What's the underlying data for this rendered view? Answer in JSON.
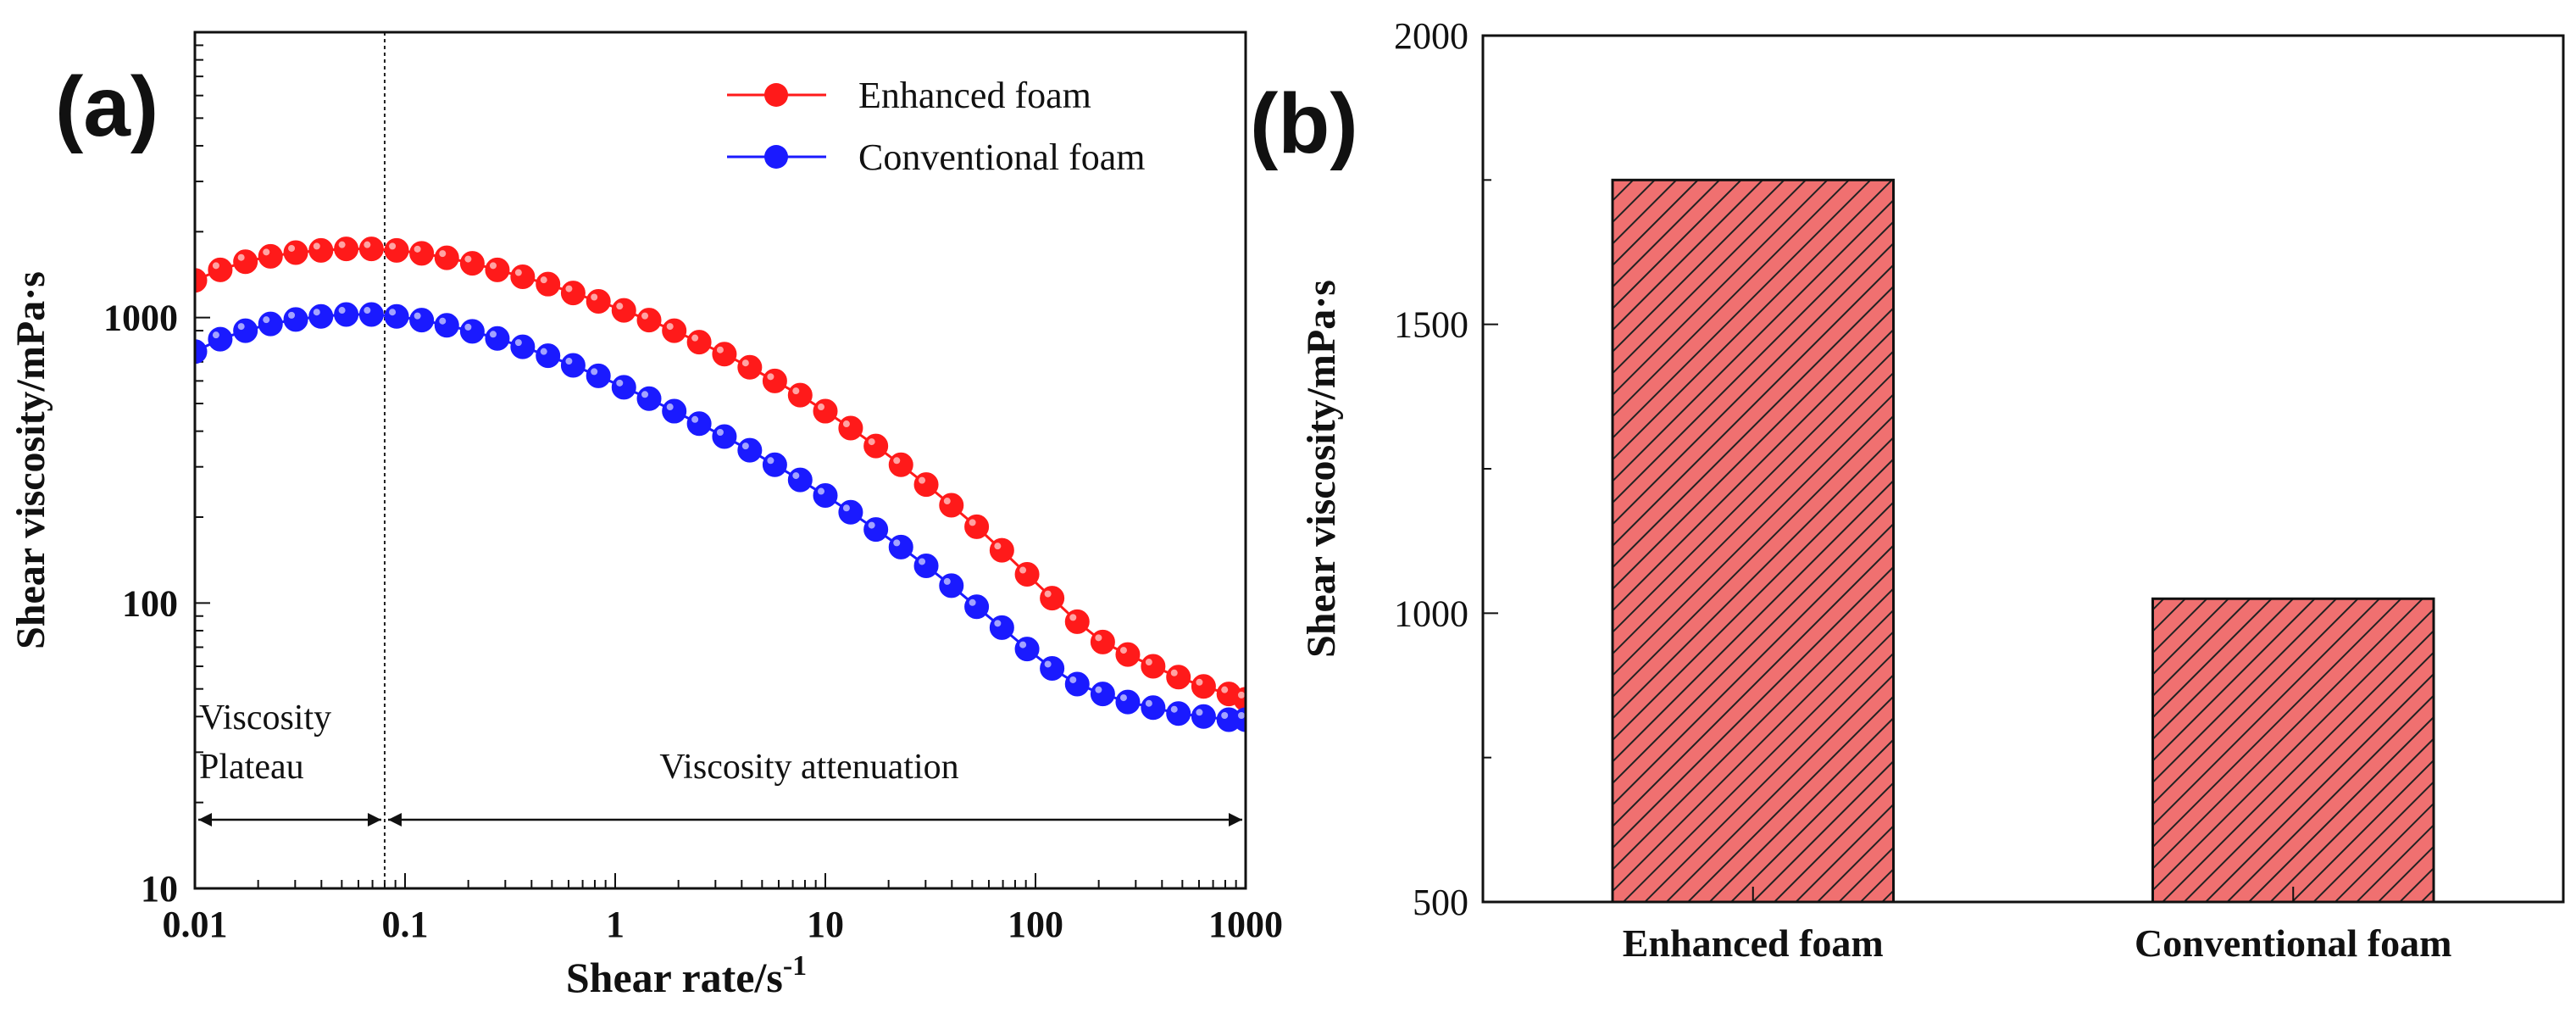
{
  "figure": {
    "panel_a_label": "(a)",
    "panel_b_label": "(b)"
  },
  "chart_data": [
    {
      "type": "scatter",
      "panel": "a",
      "xscale": "log",
      "yscale": "log",
      "xlim": [
        0.01,
        1000
      ],
      "ylim": [
        10,
        10000
      ],
      "xlabel": "Shear rate/s",
      "xlabel_sup": "-1",
      "ylabel": "Shear viscosity/mPa·s",
      "xticks": [
        0.01,
        0.1,
        1,
        10,
        100,
        1000
      ],
      "xtick_labels": [
        "0.01",
        "0.1",
        "1",
        "10",
        "100",
        "1000"
      ],
      "yticks": [
        10,
        100,
        1000
      ],
      "ytick_labels": [
        "10",
        "100",
        "1000"
      ],
      "legend_position": "top-right",
      "divider_x": 0.08,
      "annotations": {
        "plateau": [
          "Viscosity",
          "Plateau"
        ],
        "attenuation": "Viscosity attenuation"
      },
      "series": [
        {
          "name": "Enhanced foam",
          "color": "#ff1a1a",
          "x": [
            0.01,
            0.0132,
            0.0174,
            0.0229,
            0.0302,
            0.0398,
            0.0525,
            0.0692,
            0.0912,
            0.12,
            0.158,
            0.209,
            0.275,
            0.363,
            0.479,
            0.631,
            0.832,
            1.1,
            1.45,
            1.91,
            2.51,
            3.31,
            4.37,
            5.75,
            7.59,
            10,
            13.2,
            17.4,
            22.9,
            30.2,
            39.8,
            52.5,
            69.2,
            91.2,
            120,
            158,
            209,
            275,
            363,
            479,
            631,
            832,
            1000
          ],
          "y": [
            1350,
            1470,
            1570,
            1640,
            1690,
            1720,
            1740,
            1740,
            1720,
            1680,
            1620,
            1550,
            1470,
            1390,
            1310,
            1220,
            1140,
            1060,
            980,
            900,
            820,
            745,
            670,
            600,
            535,
            470,
            410,
            355,
            305,
            260,
            220,
            185,
            153,
            126,
            104,
            86,
            73,
            66,
            60,
            55,
            51,
            48,
            46
          ]
        },
        {
          "name": "Conventional foam",
          "color": "#1a1aff",
          "x": [
            0.01,
            0.0132,
            0.0174,
            0.0229,
            0.0302,
            0.0398,
            0.0525,
            0.0692,
            0.0912,
            0.12,
            0.158,
            0.209,
            0.275,
            0.363,
            0.479,
            0.631,
            0.832,
            1.1,
            1.45,
            1.91,
            2.51,
            3.31,
            4.37,
            5.75,
            7.59,
            10,
            13.2,
            17.4,
            22.9,
            30.2,
            39.8,
            52.5,
            69.2,
            91.2,
            120,
            158,
            209,
            275,
            363,
            479,
            631,
            832,
            1000
          ],
          "y": [
            760,
            840,
            900,
            950,
            985,
            1010,
            1025,
            1025,
            1010,
            980,
            940,
            895,
            845,
            790,
            735,
            680,
            625,
            570,
            520,
            470,
            425,
            383,
            343,
            305,
            270,
            238,
            208,
            181,
            157,
            135,
            115,
            97,
            82,
            69,
            59,
            52,
            48,
            45,
            43,
            41,
            40,
            39,
            39
          ]
        }
      ]
    },
    {
      "type": "bar",
      "panel": "b",
      "categories": [
        "Enhanced foam",
        "Conventional foam"
      ],
      "values": [
        1750,
        1025
      ],
      "ylim": [
        500,
        2000
      ],
      "ylabel": "Shear viscosity/mPa·s",
      "xlabel": "",
      "yticks": [
        500,
        1000,
        1500,
        2000
      ],
      "ytick_labels": [
        "500",
        "1000",
        "1500",
        "2000"
      ],
      "bar_color": "#f07070",
      "hatch_color": "#222222"
    }
  ]
}
